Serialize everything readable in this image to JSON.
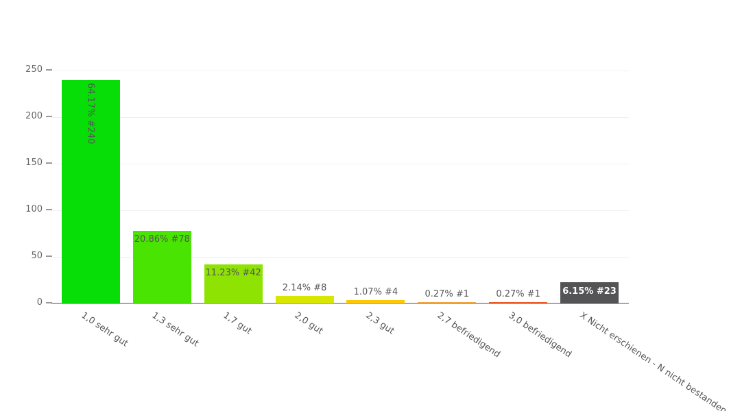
{
  "chart_data": {
    "type": "bar",
    "title": "",
    "categories": [
      "1,0 sehr gut",
      "1,3 sehr gut",
      "1,7 gut",
      "2,0 gut",
      "2,3 gut",
      "2,7 befriedigend",
      "3,0 befriedigend",
      "X Nicht erschienen - N nicht bestanden"
    ],
    "values": [
      240,
      78,
      42,
      8,
      4,
      1,
      1,
      23
    ],
    "bars": [
      {
        "category": "1,0 sehr gut",
        "value": 240,
        "label": "64.17% #240",
        "color": "#07dd07",
        "label_placement": "inside-vertical"
      },
      {
        "category": "1,3 sehr gut",
        "value": 78,
        "label": "20.86% #78",
        "color": "#49e402",
        "label_placement": "inside"
      },
      {
        "category": "1,7 gut",
        "value": 42,
        "label": "11.23% #42",
        "color": "#8fe303",
        "label_placement": "inside"
      },
      {
        "category": "2,0 gut",
        "value": 8,
        "label": "2.14% #8",
        "color": "#d9e600",
        "label_placement": "above"
      },
      {
        "category": "2,3 gut",
        "value": 4,
        "label": "1.07% #4",
        "color": "#fdc705",
        "label_placement": "above"
      },
      {
        "category": "2,7 befriedigend",
        "value": 1,
        "label": "0.27% #1",
        "color": "#f2a43d",
        "label_placement": "above"
      },
      {
        "category": "3,0 befriedigend",
        "value": 1,
        "label": "0.27% #1",
        "color": "#ed5a26",
        "label_placement": "above"
      },
      {
        "category": "X Nicht erschienen - N nicht bestanden",
        "value": 23,
        "label": "6.15% #23",
        "color": "#545456",
        "label_placement": "inside-contrast"
      }
    ],
    "xlabel": "",
    "ylabel": "",
    "yticks": [
      0,
      50,
      100,
      150,
      200,
      250
    ],
    "ylim": [
      0,
      250
    ],
    "grid": "horizontal-only",
    "legend": "none",
    "label_rotation_deg": 34,
    "colors_note": {
      "grid": "#f0f0f0",
      "axis_line": "#a6a6a6",
      "tick_text": "#666666",
      "bar_label_text": "#555555",
      "last_bar_label_text": "#ffffff"
    }
  }
}
